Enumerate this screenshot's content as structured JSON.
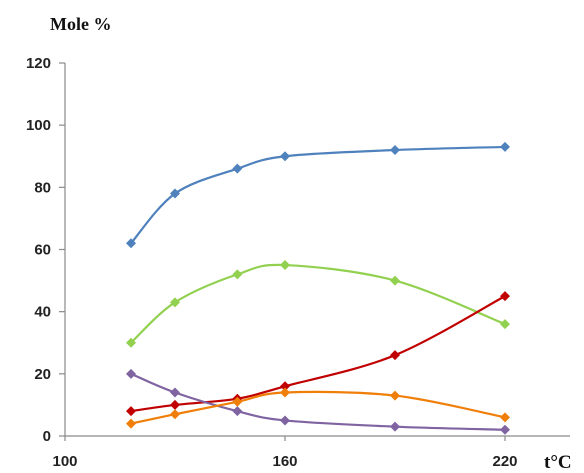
{
  "chart_data": {
    "type": "line",
    "ylabel": "Mole %",
    "xlabel": "t°C",
    "xlim": [
      100,
      235
    ],
    "ylim": [
      0,
      120
    ],
    "xticks": [
      100,
      160,
      220
    ],
    "yticks": [
      0,
      20,
      40,
      60,
      80,
      100,
      120
    ],
    "grid": false,
    "x": [
      118,
      130,
      147,
      160,
      190,
      220
    ],
    "series": [
      {
        "color": "#4f81bd",
        "values": [
          62,
          78,
          86,
          90,
          92,
          93
        ]
      },
      {
        "color": "#92d050",
        "values": [
          30,
          43,
          52,
          55,
          50,
          36
        ]
      },
      {
        "color": "#c00000",
        "values": [
          8,
          10,
          12,
          16,
          26,
          45
        ]
      },
      {
        "color": "#8064a2",
        "values": [
          20,
          14,
          8,
          5,
          3,
          2
        ]
      },
      {
        "color": "#f07f09",
        "values": [
          4,
          7,
          11,
          14,
          13,
          6
        ]
      }
    ]
  }
}
